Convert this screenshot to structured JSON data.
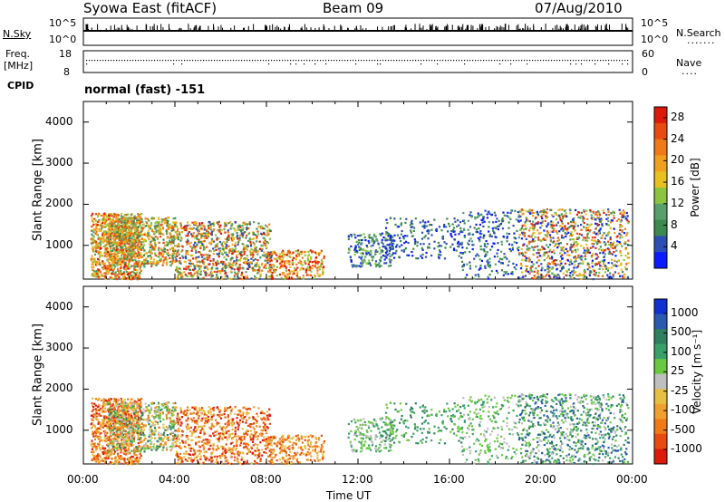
{
  "header": {
    "station": "Syowa East (fitACF)",
    "beam": "Beam 09",
    "date": "07/Aug/2010"
  },
  "panels": {
    "nsky_label": "N.Sky",
    "nsky_ticks": [
      "10^5",
      "10^0"
    ],
    "nsearch_label": "N.Search",
    "freq_label": "Freq.",
    "freq_unit": "[MHz]",
    "freq_ticks": [
      "18",
      "8"
    ],
    "nave_label": "Nave",
    "nave_ticks": [
      "60",
      "0"
    ],
    "cpid_label": "CPID",
    "cpid_value": "normal (fast) -151"
  },
  "colors": {
    "power_scale": [
      "#0a1cff",
      "#2d4fb3",
      "#3c8a4e",
      "#57a06c",
      "#8cc43f",
      "#e8c020",
      "#f0a020",
      "#ee7a18",
      "#e84a10",
      "#dc1a0c"
    ],
    "velocity_scale": [
      "#1030d0",
      "#2a5ab0",
      "#2e8060",
      "#3aa06a",
      "#6ac840",
      "#bfbfbf",
      "#e6c040",
      "#f0a030",
      "#ee7a18",
      "#e84a10",
      "#dc1a0c"
    ]
  },
  "chart_data": [
    {
      "type": "heatmap",
      "name": "power",
      "xlabel": "Time UT",
      "ylabel": "Slant Range [km]",
      "x_ticks": [
        "00:00",
        "04:00",
        "08:00",
        "12:00",
        "16:00",
        "20:00",
        "00:00"
      ],
      "y_ticks": [
        1000,
        2000,
        3000,
        4000
      ],
      "ylim": [
        180,
        4500
      ],
      "xlim_hours": [
        0,
        24
      ],
      "colorbar_label": "Power [dB]",
      "colorbar_ticks": [
        "4",
        "8",
        "12",
        "16",
        "20",
        "24",
        "28"
      ],
      "colorbar_range": [
        0,
        30
      ]
    },
    {
      "type": "heatmap",
      "name": "velocity",
      "xlabel": "Time UT",
      "ylabel": "Slant Range [km]",
      "x_ticks": [
        "00:00",
        "04:00",
        "08:00",
        "12:00",
        "16:00",
        "20:00",
        "00:00"
      ],
      "y_ticks": [
        1000,
        2000,
        3000,
        4000
      ],
      "ylim": [
        180,
        4500
      ],
      "xlim_hours": [
        0,
        24
      ],
      "colorbar_label": "Velocity [m s⁻¹]",
      "colorbar_ticks": [
        "1000",
        "500",
        "100",
        "25",
        "-25",
        "-100",
        "-500",
        "-1000"
      ]
    }
  ]
}
